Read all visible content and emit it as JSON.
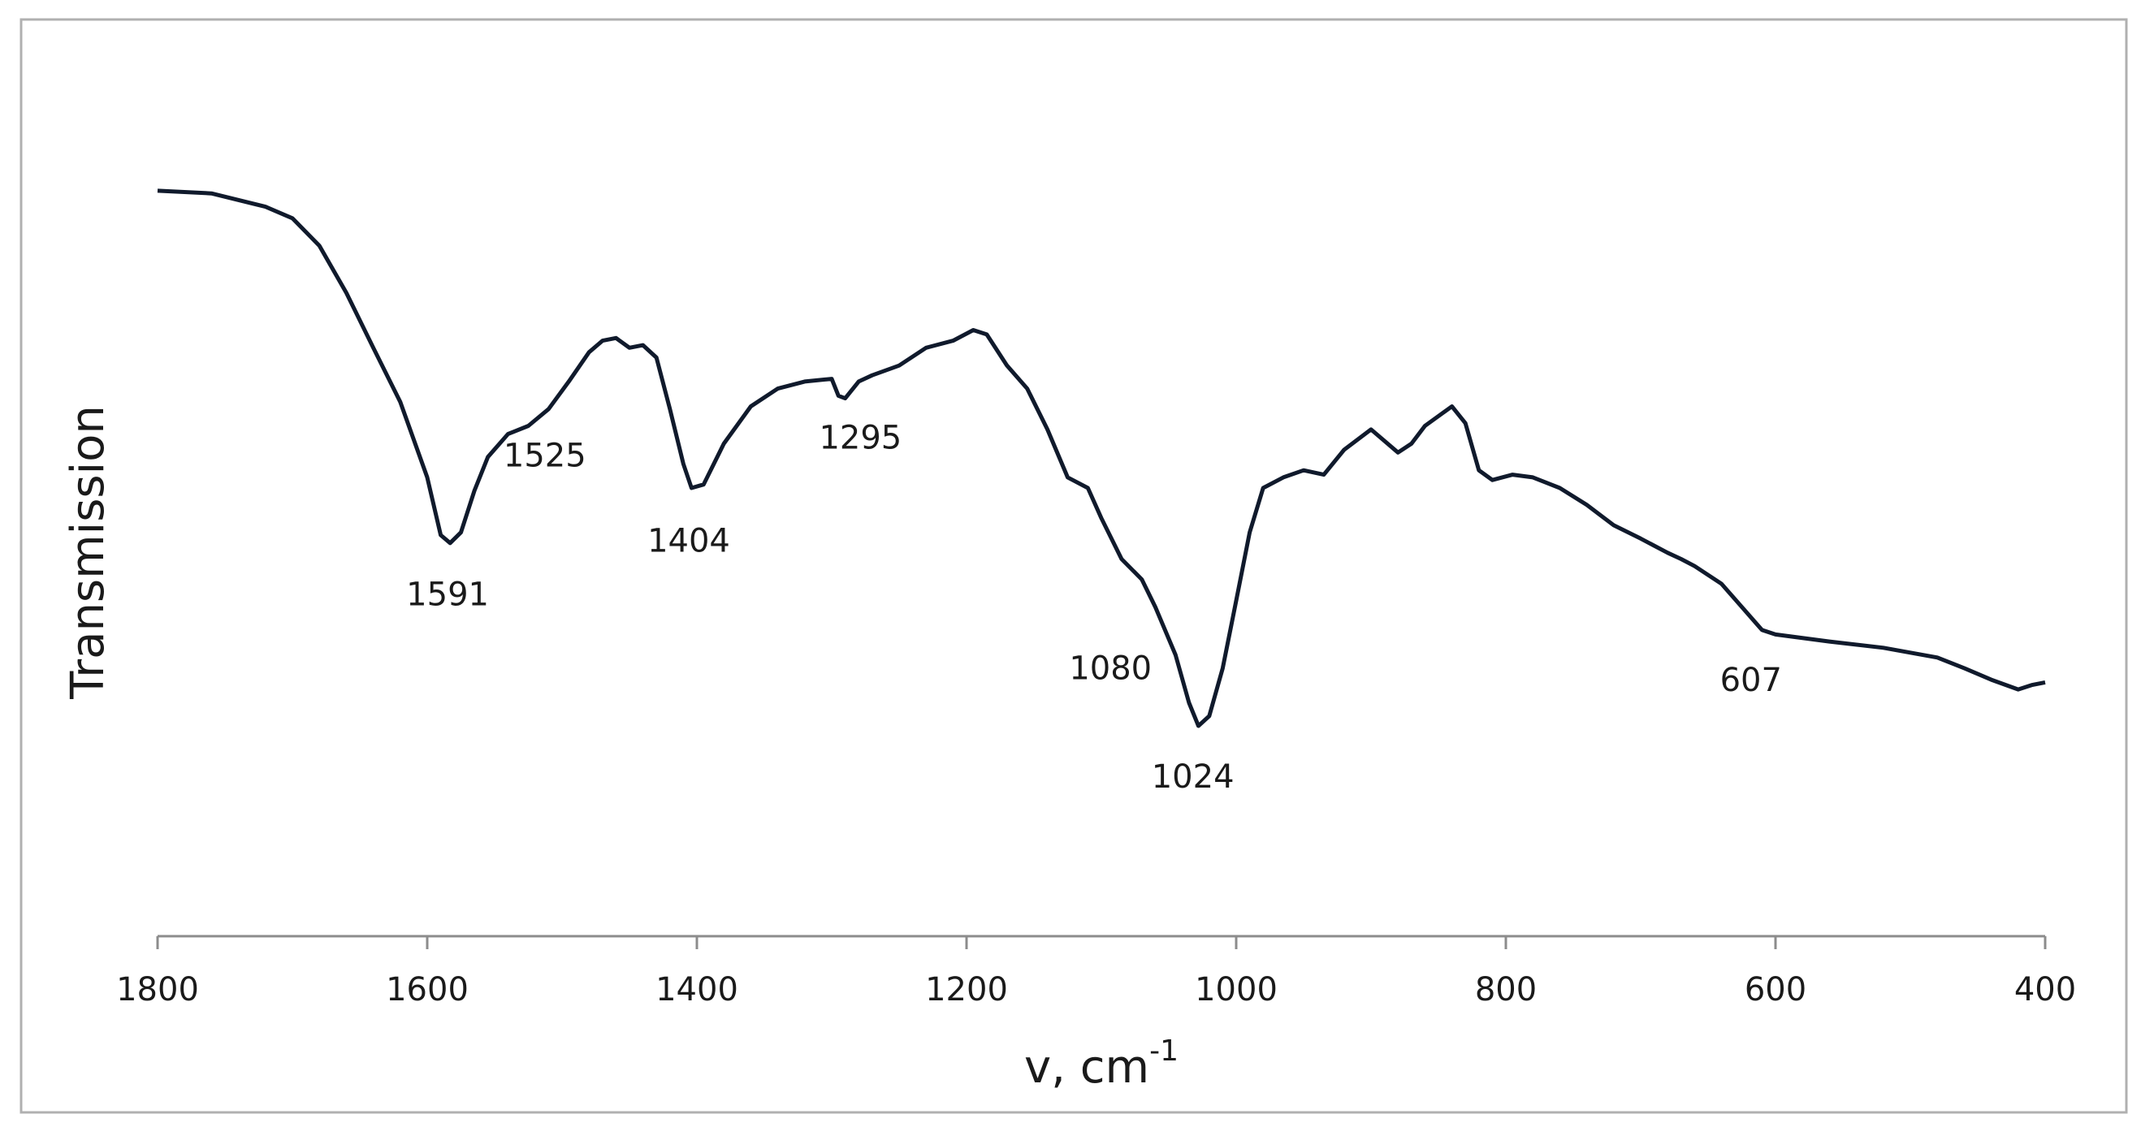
{
  "chart_data": {
    "type": "line",
    "ylabel": "Transmission",
    "xlabel": "v, cm",
    "xlabel_sup": "-1",
    "xlim": [
      1800,
      400
    ],
    "xticks": [
      1800,
      1600,
      1400,
      1200,
      1000,
      800,
      600,
      400
    ],
    "ylim": [
      0,
      100
    ],
    "color": "#101a2c",
    "series": [
      {
        "x": [
          1800,
          1760,
          1720,
          1700,
          1680,
          1660,
          1640,
          1620,
          1600,
          1590,
          1583,
          1575,
          1565,
          1555,
          1540,
          1525,
          1510,
          1495,
          1480,
          1470,
          1460,
          1450,
          1440,
          1430,
          1420,
          1410,
          1404,
          1395,
          1380,
          1360,
          1340,
          1320,
          1300,
          1295,
          1290,
          1280,
          1270,
          1250,
          1230,
          1210,
          1195,
          1185,
          1170,
          1155,
          1140,
          1125,
          1110,
          1100,
          1085,
          1070,
          1060,
          1045,
          1035,
          1028,
          1020,
          1010,
          1000,
          990,
          980,
          965,
          950,
          935,
          920,
          900,
          880,
          870,
          860,
          840,
          830,
          820,
          810,
          795,
          780,
          760,
          740,
          720,
          700,
          680,
          670,
          660,
          640,
          625,
          610,
          600,
          560,
          520,
          480,
          460,
          440,
          420,
          410,
          400
        ],
        "values": [
          84.0,
          83.7,
          82.2,
          80.9,
          77.8,
          72.5,
          66.3,
          60.2,
          51.7,
          45.2,
          44.3,
          45.5,
          50.2,
          54.0,
          56.6,
          57.5,
          59.4,
          62.5,
          65.8,
          67.1,
          67.4,
          66.3,
          66.6,
          65.2,
          59.4,
          53.2,
          50.5,
          50.9,
          55.5,
          59.7,
          61.7,
          62.5,
          62.8,
          60.9,
          60.6,
          62.5,
          63.2,
          64.3,
          66.3,
          67.1,
          68.3,
          67.8,
          64.3,
          61.7,
          57.1,
          51.7,
          50.5,
          47.1,
          42.5,
          40.2,
          37.1,
          31.7,
          26.3,
          23.7,
          24.8,
          30.2,
          37.8,
          45.5,
          50.5,
          51.7,
          52.5,
          52.0,
          54.8,
          57.1,
          54.5,
          55.5,
          57.5,
          59.7,
          57.8,
          52.5,
          51.4,
          52.0,
          51.7,
          50.5,
          48.6,
          46.3,
          44.8,
          43.2,
          42.5,
          41.7,
          39.7,
          37.1,
          34.5,
          34.0,
          33.2,
          32.5,
          31.4,
          30.2,
          28.9,
          27.8,
          28.3,
          28.6
        ]
      }
    ],
    "annotations": [
      {
        "x": 1591,
        "text": "1591"
      },
      {
        "x": 1525,
        "text": "1525"
      },
      {
        "x": 1404,
        "text": "1404"
      },
      {
        "x": 1295,
        "text": "1295"
      },
      {
        "x": 1080,
        "text": "1080"
      },
      {
        "x": 1024,
        "text": "1024"
      },
      {
        "x": 607,
        "text": "607"
      }
    ]
  }
}
